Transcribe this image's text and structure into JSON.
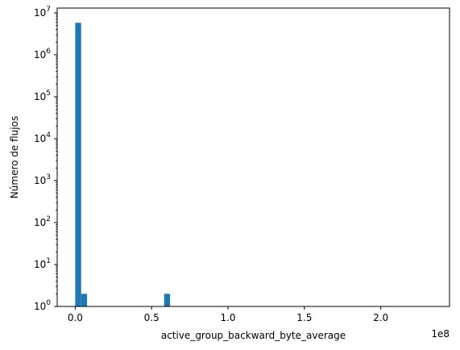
{
  "chart_data": {
    "type": "bar",
    "title": "",
    "xlabel": "active_group_backward_byte_average",
    "ylabel": "Número de flujos",
    "x_offset_text": "1e8",
    "x_scale_factor": 100000000,
    "xlim": [
      -11800000,
      245000000
    ],
    "x_ticks": [
      0,
      50000000,
      100000000,
      150000000,
      200000000
    ],
    "x_tick_labels": [
      "0.0",
      "0.5",
      "1.0",
      "1.5",
      "2.0"
    ],
    "y_scale": "log",
    "ylim": [
      1,
      13000000
    ],
    "y_ticks": [
      1,
      10,
      100,
      1000,
      10000,
      100000,
      1000000,
      10000000
    ],
    "y_tick_labels": [
      "10^0",
      "10^1",
      "10^2",
      "10^3",
      "10^4",
      "10^5",
      "10^6",
      "10^7"
    ],
    "bar_color": "#1f77b4",
    "bins": [
      {
        "x0": 0,
        "x1": 3880000,
        "count": 5800000
      },
      {
        "x0": 3880000,
        "x1": 7760000,
        "count": 2
      },
      {
        "x0": 58200000,
        "x1": 62080000,
        "count": 2
      }
    ],
    "grid": false,
    "legend": "none"
  }
}
